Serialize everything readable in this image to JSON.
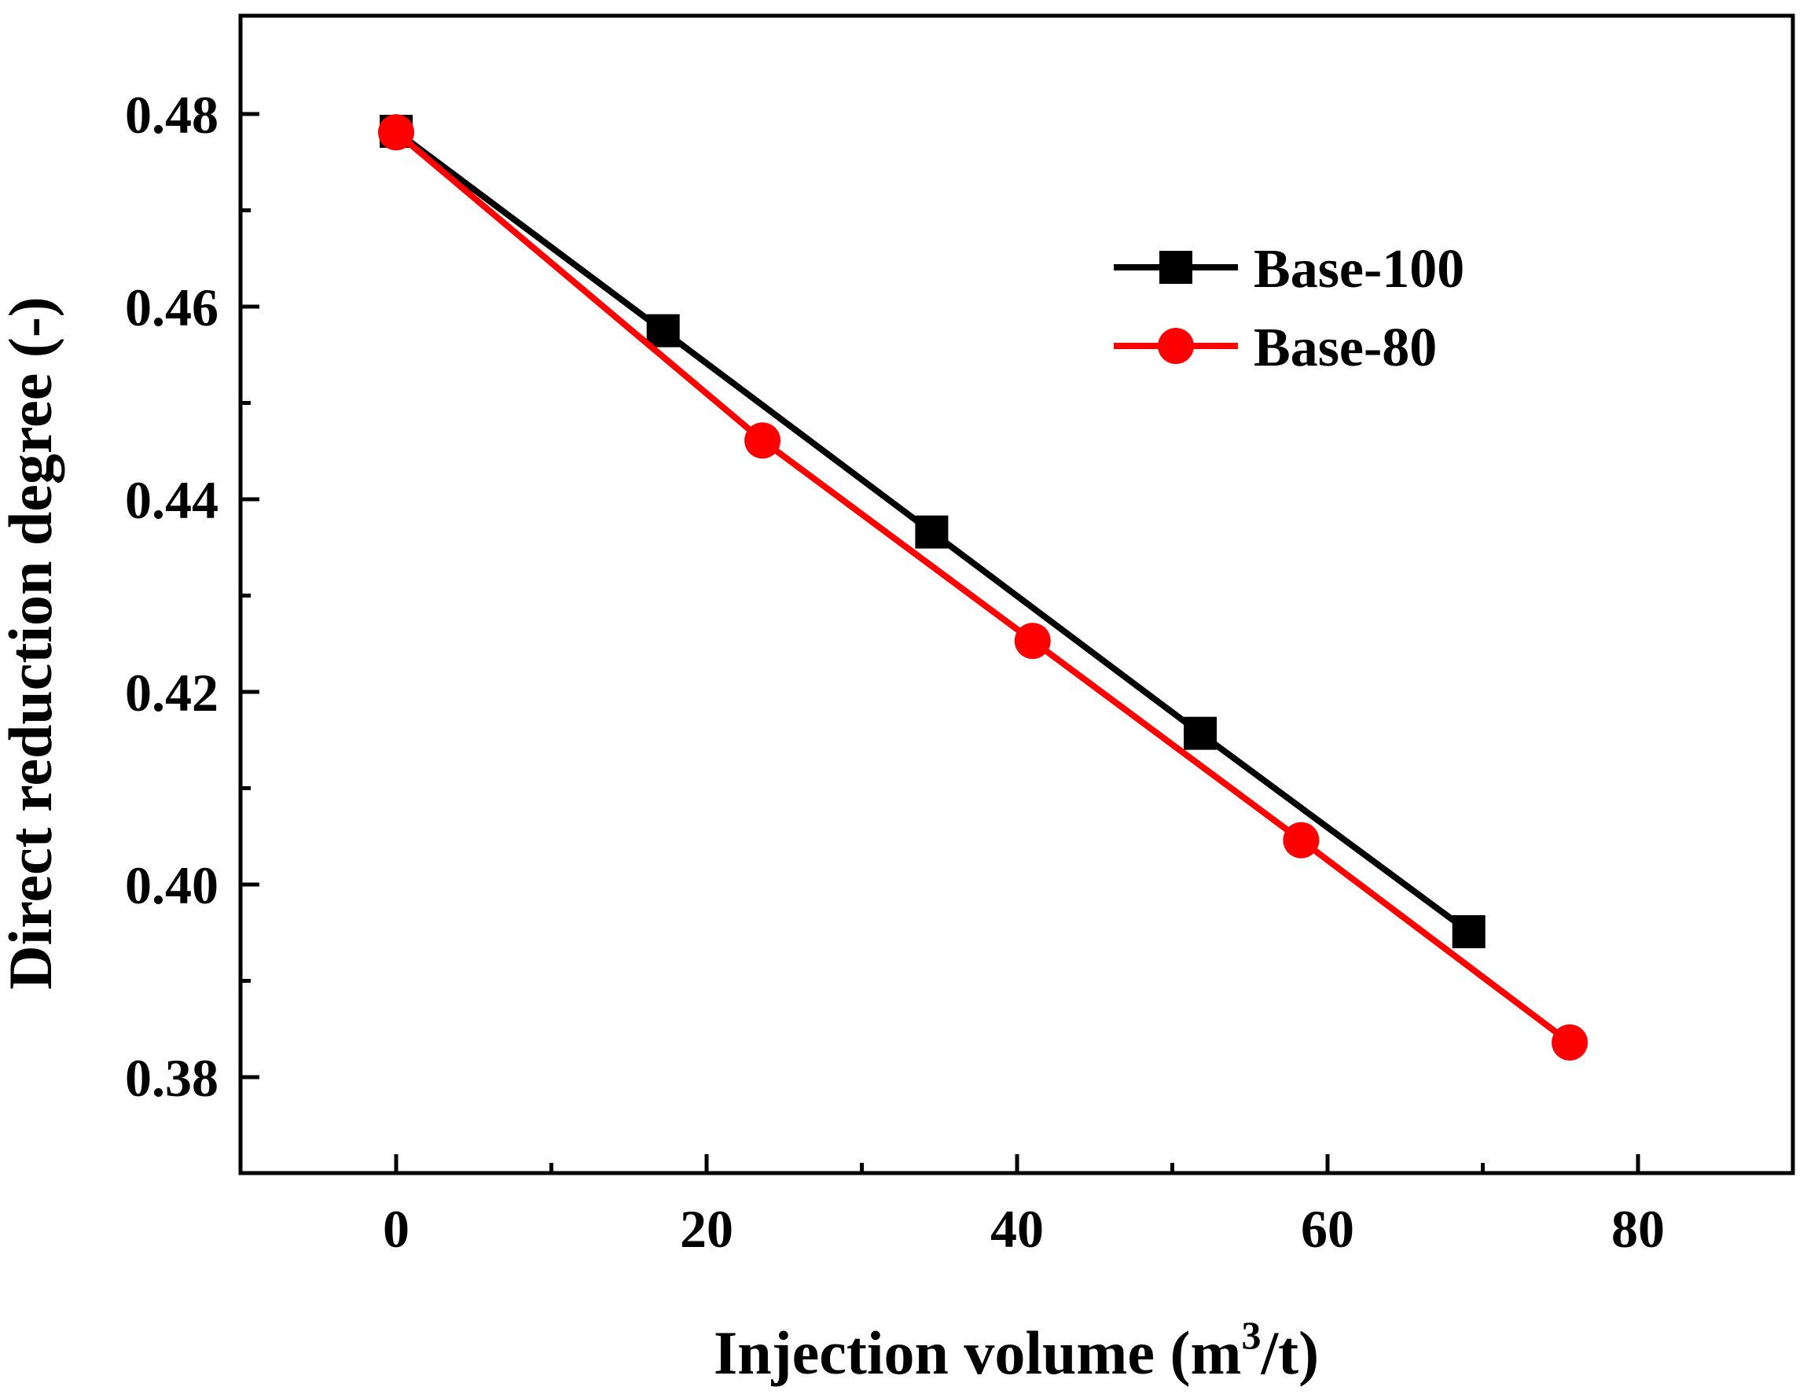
{
  "chart_data": {
    "type": "line",
    "title": "",
    "xlabel": "Injection volume (m",
    "xlabel_superscript": "3",
    "xlabel_suffix": "/t)",
    "ylabel": "Direct reduction degree (-)",
    "xlim": [
      -10,
      90
    ],
    "ylim": [
      0.37,
      0.49
    ],
    "x_ticks": [
      0,
      20,
      40,
      60,
      80
    ],
    "x_tick_labels": [
      "0",
      "20",
      "40",
      "60",
      "80"
    ],
    "x_minor_ticks": [
      10,
      30,
      50,
      70
    ],
    "y_ticks": [
      0.38,
      0.4,
      0.42,
      0.44,
      0.46,
      0.48
    ],
    "y_tick_labels": [
      "0.38",
      "0.40",
      "0.42",
      "0.44",
      "0.46",
      "0.48"
    ],
    "y_minor_ticks": [
      0.39,
      0.41,
      0.43,
      0.45,
      0.47
    ],
    "grid": false,
    "legend_position": "top-right",
    "series": [
      {
        "name": "Base-100",
        "color": "#000000",
        "marker": "square",
        "x": [
          0,
          17.2,
          34.5,
          51.8,
          69.1
        ],
        "y": [
          0.4782,
          0.4575,
          0.4366,
          0.4157,
          0.3951
        ]
      },
      {
        "name": "Base-80",
        "color": "#ff0000",
        "marker": "circle",
        "x": [
          0,
          23.6,
          41.0,
          58.3,
          75.6
        ],
        "y": [
          0.4781,
          0.4461,
          0.4253,
          0.4046,
          0.3836
        ]
      }
    ]
  }
}
